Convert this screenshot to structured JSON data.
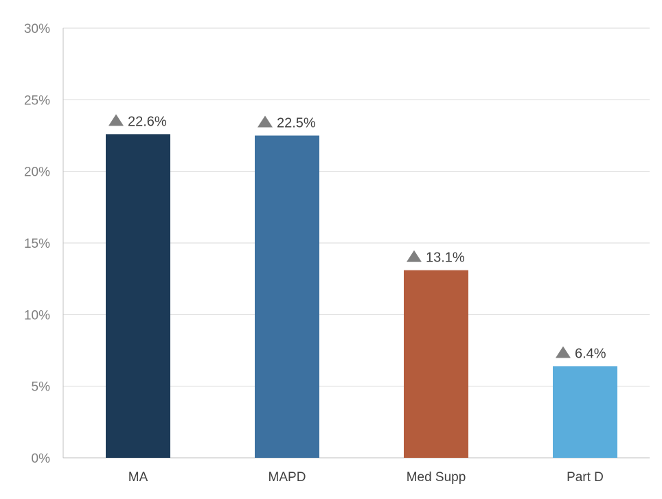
{
  "chart_data": {
    "type": "bar",
    "title": "",
    "xlabel": "",
    "ylabel": "",
    "categories": [
      "MA",
      "MAPD",
      "Med Supp",
      "Part D"
    ],
    "values": [
      22.6,
      22.5,
      13.1,
      6.4
    ],
    "data_labels": [
      "22.6%",
      "22.5%",
      "13.1%",
      "6.4%"
    ],
    "label_marker": "up-triangle-icon",
    "ylim": [
      0,
      30
    ],
    "y_ticks": [
      0,
      5,
      10,
      15,
      20,
      25,
      30
    ],
    "y_tick_labels": [
      "0%",
      "5%",
      "10%",
      "15%",
      "20%",
      "25%",
      "30%"
    ],
    "grid": true,
    "legend": "none",
    "colors": {
      "bars": [
        "#1c3a57",
        "#3d71a0",
        "#b45c3c",
        "#5aaddc"
      ],
      "marker": "#7f7f7f",
      "grid": "#d9d9d9",
      "axis": "#bfbfbf"
    }
  }
}
